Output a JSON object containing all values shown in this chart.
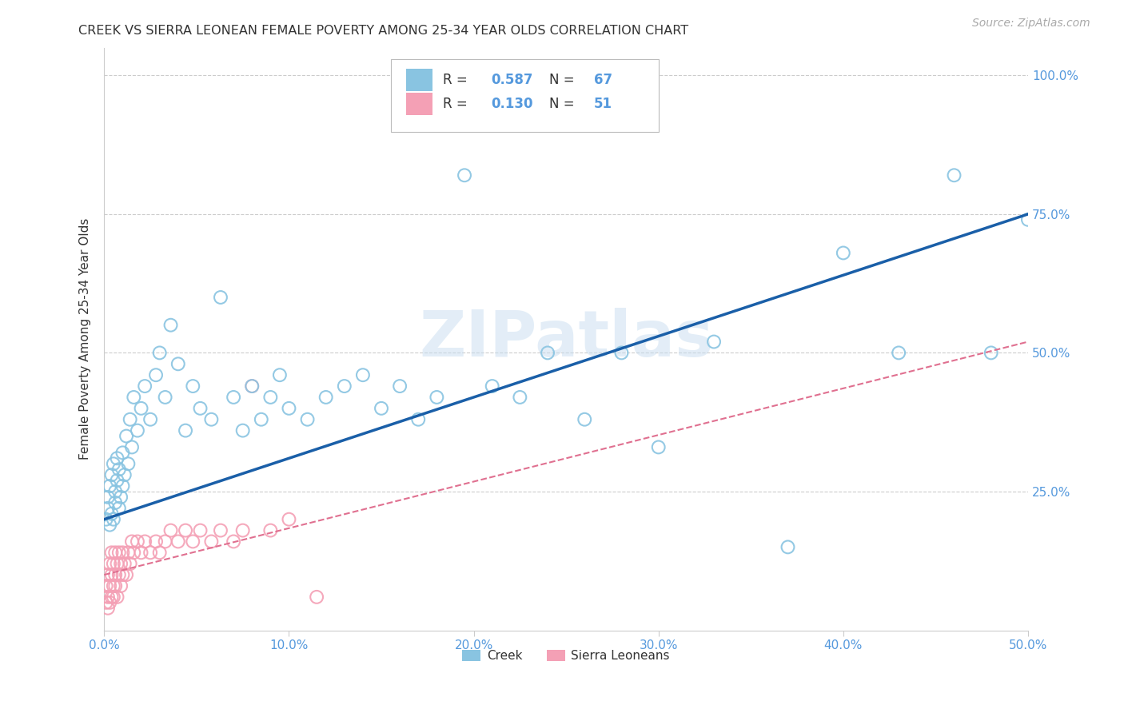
{
  "title": "CREEK VS SIERRA LEONEAN FEMALE POVERTY AMONG 25-34 YEAR OLDS CORRELATION CHART",
  "source": "Source: ZipAtlas.com",
  "ylabel": "Female Poverty Among 25-34 Year Olds",
  "xlim": [
    0.0,
    0.5
  ],
  "ylim": [
    0.0,
    1.05
  ],
  "xticks": [
    0.0,
    0.1,
    0.2,
    0.3,
    0.4,
    0.5
  ],
  "xtick_labels": [
    "0.0%",
    "10.0%",
    "20.0%",
    "30.0%",
    "40.0%",
    "50.0%"
  ],
  "yticks": [
    0.0,
    0.25,
    0.5,
    0.75,
    1.0
  ],
  "ytick_labels": [
    "",
    "25.0%",
    "50.0%",
    "75.0%",
    "100.0%"
  ],
  "watermark": "ZIPatlas",
  "creek_R": 0.587,
  "creek_N": 67,
  "sl_R": 0.13,
  "sl_N": 51,
  "creek_color": "#89c4e1",
  "sl_color": "#f4a0b5",
  "creek_line_color": "#1a5fa8",
  "sl_line_color": "#e07090",
  "background_color": "#ffffff",
  "grid_color": "#cccccc",
  "title_color": "#333333",
  "axis_label_color": "#333333",
  "tick_label_color": "#5599dd",
  "legend_color": "#5599dd",
  "creek_x": [
    0.001,
    0.002,
    0.002,
    0.003,
    0.003,
    0.004,
    0.004,
    0.005,
    0.005,
    0.006,
    0.006,
    0.007,
    0.007,
    0.008,
    0.008,
    0.009,
    0.01,
    0.01,
    0.011,
    0.012,
    0.013,
    0.014,
    0.015,
    0.016,
    0.018,
    0.02,
    0.022,
    0.025,
    0.028,
    0.03,
    0.033,
    0.036,
    0.04,
    0.044,
    0.048,
    0.052,
    0.058,
    0.063,
    0.07,
    0.075,
    0.08,
    0.085,
    0.09,
    0.095,
    0.1,
    0.11,
    0.12,
    0.13,
    0.14,
    0.15,
    0.16,
    0.17,
    0.18,
    0.195,
    0.21,
    0.225,
    0.24,
    0.26,
    0.28,
    0.3,
    0.33,
    0.37,
    0.4,
    0.43,
    0.46,
    0.48,
    0.5
  ],
  "creek_y": [
    0.2,
    0.22,
    0.24,
    0.19,
    0.26,
    0.21,
    0.28,
    0.2,
    0.3,
    0.23,
    0.25,
    0.27,
    0.31,
    0.22,
    0.29,
    0.24,
    0.26,
    0.32,
    0.28,
    0.35,
    0.3,
    0.38,
    0.33,
    0.42,
    0.36,
    0.4,
    0.44,
    0.38,
    0.46,
    0.5,
    0.42,
    0.55,
    0.48,
    0.36,
    0.44,
    0.4,
    0.38,
    0.6,
    0.42,
    0.36,
    0.44,
    0.38,
    0.42,
    0.46,
    0.4,
    0.38,
    0.42,
    0.44,
    0.46,
    0.4,
    0.44,
    0.38,
    0.42,
    0.82,
    0.44,
    0.42,
    0.5,
    0.38,
    0.5,
    0.33,
    0.52,
    0.15,
    0.68,
    0.5,
    0.82,
    0.5,
    0.74
  ],
  "sl_x": [
    0.001,
    0.001,
    0.002,
    0.002,
    0.002,
    0.003,
    0.003,
    0.003,
    0.004,
    0.004,
    0.004,
    0.005,
    0.005,
    0.005,
    0.006,
    0.006,
    0.006,
    0.007,
    0.007,
    0.008,
    0.008,
    0.009,
    0.009,
    0.01,
    0.01,
    0.011,
    0.012,
    0.013,
    0.014,
    0.015,
    0.016,
    0.018,
    0.02,
    0.022,
    0.025,
    0.028,
    0.03,
    0.033,
    0.036,
    0.04,
    0.044,
    0.048,
    0.052,
    0.058,
    0.063,
    0.07,
    0.075,
    0.08,
    0.09,
    0.1,
    0.115
  ],
  "sl_y": [
    0.05,
    0.08,
    0.06,
    0.1,
    0.04,
    0.08,
    0.12,
    0.05,
    0.1,
    0.06,
    0.14,
    0.08,
    0.12,
    0.06,
    0.1,
    0.14,
    0.08,
    0.12,
    0.06,
    0.1,
    0.14,
    0.08,
    0.12,
    0.1,
    0.14,
    0.12,
    0.1,
    0.14,
    0.12,
    0.16,
    0.14,
    0.16,
    0.14,
    0.16,
    0.14,
    0.16,
    0.14,
    0.16,
    0.18,
    0.16,
    0.18,
    0.16,
    0.18,
    0.16,
    0.18,
    0.16,
    0.18,
    0.44,
    0.18,
    0.2,
    0.06
  ],
  "creek_trend_x": [
    0.0,
    0.5
  ],
  "creek_trend_y": [
    0.2,
    0.75
  ],
  "sl_trend_x": [
    0.0,
    0.5
  ],
  "sl_trend_y": [
    0.1,
    0.52
  ]
}
